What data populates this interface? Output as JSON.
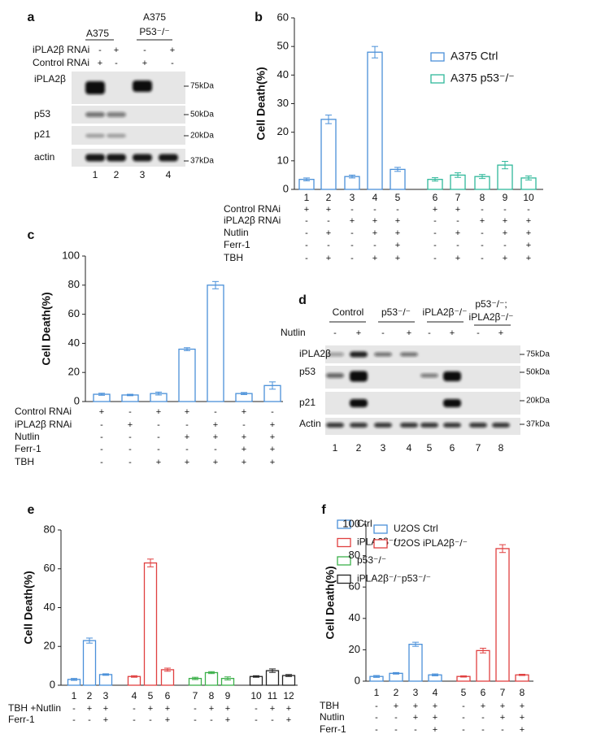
{
  "chart_data": [
    {
      "type": "bar",
      "panel_label": "b",
      "ylabel": "Cell Death(%)",
      "categories": [
        "1",
        "2",
        "3",
        "4",
        "5",
        "6",
        "7",
        "8",
        "9",
        "10"
      ],
      "series": [
        {
          "name": "A375 Ctrl",
          "color": "#4a90d9",
          "values": [
            3.5,
            24.5,
            4.5,
            48,
            7,
            null,
            null,
            null,
            null,
            null
          ],
          "errors": [
            0.5,
            1.5,
            0.5,
            2,
            0.7,
            null,
            null,
            null,
            null,
            null
          ]
        },
        {
          "name": "A375 p53⁻/⁻",
          "color": "#2fb89a",
          "values": [
            null,
            null,
            null,
            null,
            null,
            3.5,
            5,
            4.5,
            8.5,
            4
          ],
          "errors": [
            null,
            null,
            null,
            null,
            null,
            0.6,
            0.8,
            0.7,
            1.3,
            0.7
          ]
        }
      ],
      "conditions": [
        {
          "label": "Control RNAi",
          "signs": [
            "+",
            "+",
            "-",
            "-",
            "-",
            "+",
            "+",
            "-",
            "-",
            "-"
          ]
        },
        {
          "label": "iPLA2β RNAi",
          "signs": [
            "-",
            "-",
            "+",
            "+",
            "+",
            "-",
            "-",
            "+",
            "+",
            "+"
          ]
        },
        {
          "label": "Nutlin",
          "signs": [
            "-",
            "+",
            "-",
            "+",
            "+",
            "-",
            "+",
            "-",
            "+",
            "+"
          ]
        },
        {
          "label": "Ferr-1",
          "signs": [
            "-",
            "-",
            "-",
            "-",
            "+",
            "-",
            "-",
            "-",
            "-",
            "+"
          ]
        },
        {
          "label": "TBH",
          "signs": [
            "-",
            "+",
            "-",
            "+",
            "+",
            "-",
            "+",
            "-",
            "+",
            "+"
          ]
        }
      ],
      "ylim": [
        0,
        60
      ],
      "yticks": [
        0,
        10,
        20,
        30,
        40,
        50,
        60
      ],
      "legend": "upper right"
    },
    {
      "type": "bar",
      "panel_label": "c",
      "ylabel": "Cell Death(%)",
      "categories": [
        null,
        null,
        null,
        null,
        null,
        null,
        null
      ],
      "series": [
        {
          "color": "#4a90d9",
          "values": [
            5,
            4.5,
            5.5,
            36,
            80,
            5.5,
            11
          ],
          "errors": [
            0.7,
            0.5,
            1,
            1,
            2.5,
            0.7,
            2.5
          ]
        }
      ],
      "conditions": [
        {
          "label": "Control RNAi",
          "signs": [
            "+",
            "-",
            "+",
            "+",
            "-",
            "+",
            "-"
          ]
        },
        {
          "label": "iPLA2β RNAi",
          "signs": [
            "-",
            "+",
            "-",
            "-",
            "+",
            "-",
            "+"
          ]
        },
        {
          "label": "Nutlin",
          "signs": [
            "-",
            "-",
            "-",
            "+",
            "+",
            "+",
            "+"
          ]
        },
        {
          "label": "Ferr-1",
          "signs": [
            "-",
            "-",
            "-",
            "-",
            "-",
            "+",
            "+"
          ]
        },
        {
          "label": "TBH",
          "signs": [
            "-",
            "-",
            "+",
            "+",
            "+",
            "+",
            "+"
          ]
        }
      ],
      "ylim": [
        0,
        100
      ],
      "yticks": [
        0,
        20,
        40,
        60,
        80,
        100
      ]
    },
    {
      "type": "bar",
      "panel_label": "e",
      "ylabel": "Cell Death(%)",
      "categories": [
        "1",
        "2",
        "3",
        "4",
        "5",
        "6",
        "7",
        "8",
        "9",
        "10",
        "11",
        "12"
      ],
      "series": [
        {
          "name": "Ctrl",
          "color": "#4a90d9",
          "values": [
            3,
            23,
            5.5,
            null,
            null,
            null,
            null,
            null,
            null,
            null,
            null,
            null
          ],
          "errors": [
            0.5,
            1.3,
            0.4,
            null,
            null,
            null,
            null,
            null,
            null,
            null,
            null,
            null
          ]
        },
        {
          "name": "iPLA2β⁻/⁻",
          "color": "#e04040",
          "values": [
            null,
            null,
            null,
            4.5,
            63,
            8,
            null,
            null,
            null,
            null,
            null,
            null
          ],
          "errors": [
            null,
            null,
            null,
            0.4,
            2,
            0.8,
            null,
            null,
            null,
            null,
            null,
            null
          ]
        },
        {
          "name": "p53⁻/⁻",
          "color": "#3cb04a",
          "values": [
            null,
            null,
            null,
            null,
            null,
            null,
            3.5,
            6.5,
            3.5,
            null,
            null,
            null
          ],
          "errors": [
            null,
            null,
            null,
            null,
            null,
            null,
            0.6,
            0.5,
            0.8,
            null,
            null,
            null
          ]
        },
        {
          "name": "iPLA2β⁻/⁻p53⁻/⁻",
          "color": "#222222",
          "values": [
            null,
            null,
            null,
            null,
            null,
            null,
            null,
            null,
            null,
            4.5,
            7.5,
            5
          ],
          "errors": [
            null,
            null,
            null,
            null,
            null,
            null,
            null,
            null,
            null,
            0.4,
            0.9,
            0.5
          ]
        }
      ],
      "conditions": [
        {
          "label": "TBH +Nutlin",
          "signs": [
            "-",
            "+",
            "+",
            "-",
            "+",
            "+",
            "-",
            "+",
            "+",
            "-",
            "+",
            "+"
          ]
        },
        {
          "label": "Ferr-1",
          "signs": [
            "-",
            "-",
            "+",
            "-",
            "-",
            "+",
            "-",
            "-",
            "+",
            "-",
            "-",
            "+"
          ]
        }
      ],
      "ylim": [
        0,
        80
      ],
      "yticks": [
        0,
        20,
        40,
        60,
        80
      ],
      "legend": "upper right"
    },
    {
      "type": "bar",
      "panel_label": "f",
      "ylabel": "Cell Death(%)",
      "categories": [
        "1",
        "2",
        "3",
        "4",
        "5",
        "6",
        "7",
        "8"
      ],
      "series": [
        {
          "name": "U2OS Ctrl",
          "color": "#4a90d9",
          "values": [
            3,
            5,
            23.5,
            4,
            null,
            null,
            null,
            null
          ],
          "errors": [
            0.6,
            0.5,
            1.3,
            0.6,
            null,
            null,
            null,
            null
          ]
        },
        {
          "name": "U2OS iPLA2β⁻/⁻",
          "color": "#e04040",
          "values": [
            null,
            null,
            null,
            null,
            3,
            19.5,
            84.5,
            4
          ],
          "errors": [
            null,
            null,
            null,
            null,
            0.4,
            1.5,
            2.5,
            0.4
          ]
        }
      ],
      "conditions": [
        {
          "label": "TBH",
          "signs": [
            "-",
            "+",
            "+",
            "+",
            "-",
            "+",
            "+",
            "+"
          ]
        },
        {
          "label": "Nutlin",
          "signs": [
            "-",
            "-",
            "+",
            "+",
            "-",
            "-",
            "+",
            "+"
          ]
        },
        {
          "label": "Ferr-1",
          "signs": [
            "-",
            "-",
            "-",
            "+",
            "-",
            "-",
            "-",
            "+"
          ]
        }
      ],
      "ylim": [
        0,
        100
      ],
      "yticks": [
        0,
        20,
        40,
        60,
        80,
        100
      ],
      "legend": "upper left"
    }
  ],
  "blot_a": {
    "panel_label": "a",
    "group_labels": [
      "A375",
      "A375",
      "P53⁻/⁻"
    ],
    "treatments": [
      {
        "label": "iPLA2β RNAi",
        "signs": [
          "-",
          "+",
          "-",
          "+"
        ]
      },
      {
        "label": "Control RNAi",
        "signs": [
          "+",
          "-",
          "+",
          "-"
        ]
      }
    ],
    "rows": [
      "iPLA2β",
      "p53",
      "p21",
      "actin"
    ],
    "markers": [
      "75kDa",
      "50kDa",
      "20kDa",
      "37kDa"
    ],
    "lanes": [
      "1",
      "2",
      "3",
      "4"
    ]
  },
  "blot_d": {
    "panel_label": "d",
    "group_labels": [
      "Control",
      "p53⁻/⁻",
      "iPLA2β⁻/⁻",
      "p53⁻/⁻;",
      "iPLA2β⁻/⁻"
    ],
    "treatments": [
      {
        "label": "Nutlin",
        "signs": [
          "-",
          "+",
          "-",
          "+",
          "-",
          "+",
          "-",
          "+"
        ]
      }
    ],
    "rows": [
      "iPLA2β",
      "p53",
      "p21",
      "Actin"
    ],
    "markers": [
      "75kDa",
      "50kDa",
      "20kDa",
      "37kDa"
    ],
    "lanes": [
      "1",
      "2",
      "3",
      "4",
      "5",
      "6",
      "7",
      "8"
    ]
  }
}
